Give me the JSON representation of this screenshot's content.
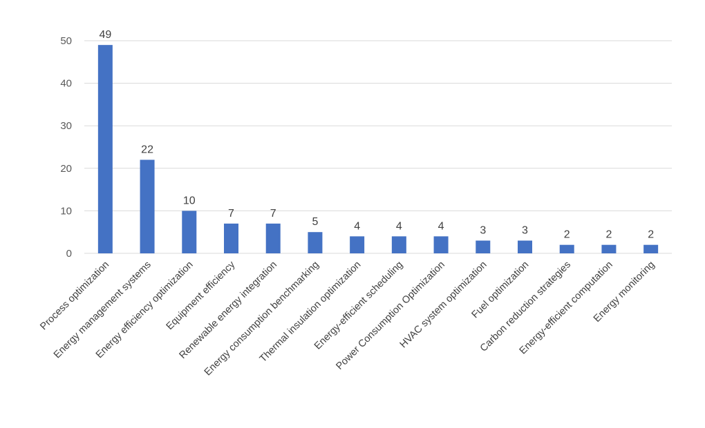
{
  "chart_data": {
    "type": "bar",
    "title": "",
    "xlabel": "",
    "ylabel": "",
    "ylim": [
      0,
      50
    ],
    "yticks": [
      0,
      10,
      20,
      30,
      40,
      50
    ],
    "grid": true,
    "legend": "none",
    "bar_color": "#4472C4",
    "grid_color": "#D9D9D9",
    "categories": [
      "Process optimization",
      "Energy management systems",
      "Energy efficiency optimization",
      "Equipment efficiency",
      "Renewable energy integration",
      "Energy consumption benchmarking",
      "Thermal insulation optimization",
      "Energy-efficient scheduling",
      "Power Consumption Optimization",
      "HVAC system optimization",
      "Fuel optimization",
      "Carbon reduction strategies",
      "Energy-efficient computation",
      "Energy monitoring"
    ],
    "values": [
      49,
      22,
      10,
      7,
      7,
      5,
      4,
      4,
      4,
      3,
      3,
      2,
      2,
      2
    ]
  }
}
